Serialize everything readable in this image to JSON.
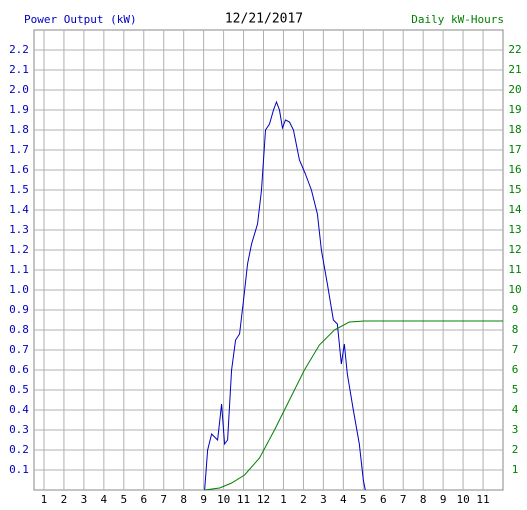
{
  "chart_data": {
    "type": "line",
    "title": "12/21/2017",
    "y_label": "Power Output (kW)",
    "y2_label": "Daily kW-Hours",
    "xlim": [
      0.5,
      24
    ],
    "xticks": [
      1,
      2,
      3,
      4,
      5,
      6,
      7,
      8,
      9,
      10,
      11,
      12,
      {
        "value": 13,
        "label": "1"
      },
      {
        "value": 14,
        "label": "2"
      },
      {
        "value": 15,
        "label": "3"
      },
      {
        "value": 16,
        "label": "4"
      },
      {
        "value": 17,
        "label": "5"
      },
      {
        "value": 18,
        "label": "6"
      },
      {
        "value": 19,
        "label": "7"
      },
      {
        "value": 20,
        "label": "8"
      },
      {
        "value": 21,
        "label": "9"
      },
      {
        "value": 22,
        "label": "10"
      },
      {
        "value": 23,
        "label": "11"
      }
    ],
    "ylim": [
      0,
      2.3
    ],
    "yticks": [
      0.1,
      0.2,
      0.3,
      0.4,
      0.5,
      0.6,
      0.7,
      0.8,
      0.9,
      {
        "value": 1,
        "label": "1.0"
      },
      1.1,
      1.2,
      1.3,
      1.4,
      1.5,
      1.6,
      1.7,
      1.8,
      1.9,
      {
        "value": 2,
        "label": "2.0"
      },
      2.1,
      2.2
    ],
    "y2lim": [
      0,
      23
    ],
    "y2ticks": [
      1,
      2,
      3,
      4,
      5,
      6,
      7,
      8,
      9,
      10,
      11,
      12,
      13,
      14,
      15,
      16,
      17,
      18,
      19,
      20,
      21,
      22
    ],
    "grid": true,
    "series": [
      {
        "name": "Power Output (kW)",
        "color": "#0000c0",
        "x": [
          9.05,
          9.2,
          9.4,
          9.7,
          9.9,
          10.05,
          10.2,
          10.4,
          10.6,
          10.8,
          11.0,
          11.2,
          11.4,
          11.7,
          11.9,
          12.1,
          12.3,
          12.5,
          12.65,
          12.8,
          12.95,
          13.1,
          13.3,
          13.5,
          13.8,
          14.1,
          14.4,
          14.7,
          14.9,
          15.2,
          15.5,
          15.7,
          15.9,
          16.05,
          16.2,
          16.5,
          16.8,
          17.0,
          17.1
        ],
        "values": [
          0,
          0.2,
          0.28,
          0.25,
          0.43,
          0.23,
          0.25,
          0.6,
          0.75,
          0.78,
          0.95,
          1.13,
          1.23,
          1.33,
          1.5,
          1.8,
          1.83,
          1.9,
          1.94,
          1.9,
          1.81,
          1.85,
          1.84,
          1.8,
          1.65,
          1.58,
          1.5,
          1.38,
          1.2,
          1.03,
          0.85,
          0.83,
          0.63,
          0.73,
          0.58,
          0.4,
          0.23,
          0.05,
          0
        ]
      },
      {
        "name": "Daily kW-Hours",
        "color": "#008000",
        "axis": "y2",
        "x": [
          9.05,
          9.8,
          10.4,
          11.05,
          11.8,
          12.55,
          13.3,
          14.05,
          14.8,
          15.55,
          16.3,
          17.05,
          24
        ],
        "values": [
          0,
          0.1,
          0.35,
          0.75,
          1.6,
          3.0,
          4.5,
          6.0,
          7.25,
          8.0,
          8.4,
          8.45,
          8.45
        ]
      }
    ]
  }
}
